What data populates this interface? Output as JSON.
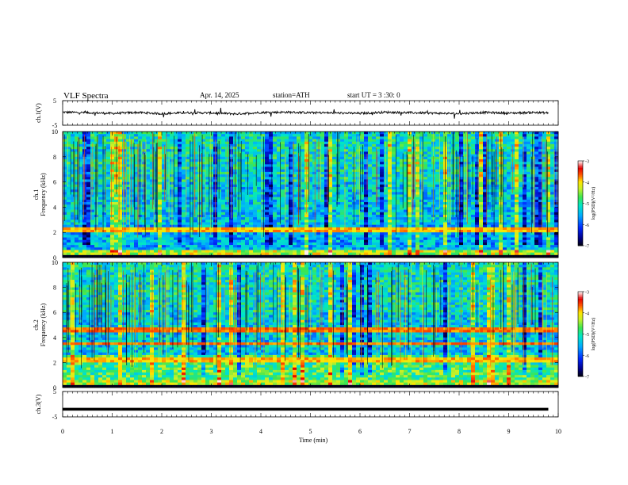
{
  "header": {
    "title": "VLF  Spectra",
    "date": "Apr. 14, 2025",
    "station": "station=ATH",
    "start": "start  UT  =   3  :30: 0"
  },
  "chart_data": [
    {
      "type": "line",
      "name": "ch1-waveform",
      "ylabel": "ch.1(V)",
      "ylim": [
        -5,
        5
      ],
      "yticks": [
        "5",
        "-5"
      ],
      "xlim": [
        0,
        10
      ],
      "x": [
        0,
        0.5,
        1,
        1.5,
        2,
        2.5,
        3,
        3.5,
        4,
        4.5,
        5,
        5.5,
        6,
        6.5,
        7,
        7.5,
        8,
        8.5,
        9,
        9.5,
        9.8
      ],
      "values": [
        0.3,
        0.1,
        -0.2,
        0.2,
        -0.3,
        0.1,
        0.0,
        -0.4,
        0.2,
        0.3,
        0.1,
        0.0,
        -0.2,
        0.3,
        0.1,
        -0.1,
        -0.3,
        0.2,
        -0.1,
        0.2,
        0.0
      ]
    },
    {
      "type": "heatmap",
      "name": "ch1-spectrogram",
      "ylabel": "ch.1\nFrequency (kHz)",
      "ylim": [
        0,
        10
      ],
      "yticks": [
        "0",
        "2",
        "4",
        "6",
        "8",
        "10"
      ],
      "xlim": [
        0,
        10
      ],
      "colorbar": {
        "label": "log(PSD)(V²/Hz)",
        "range": [
          -7,
          -3
        ],
        "ticks": [
          "-3",
          "-4",
          "-5",
          "-6",
          "-7"
        ]
      }
    },
    {
      "type": "heatmap",
      "name": "ch2-spectrogram",
      "ylabel": "ch.2\nFrequency (kHz)",
      "ylim": [
        0,
        10
      ],
      "yticks": [
        "0",
        "2",
        "4",
        "6",
        "8",
        "10"
      ],
      "xlim": [
        0,
        10
      ],
      "colorbar": {
        "label": "log(PSD)(V²/Hz)",
        "range": [
          -7,
          -3
        ],
        "ticks": [
          "-3",
          "-4",
          "-5",
          "-6",
          "-7"
        ]
      }
    },
    {
      "type": "line",
      "name": "ch3-waveform",
      "ylabel": "ch.3(V)",
      "ylim": [
        -5,
        5
      ],
      "yticks": [
        "5",
        "-5"
      ],
      "xlim": [
        0,
        10
      ],
      "x": [
        0,
        9.8
      ],
      "values": [
        -2,
        -2
      ]
    }
  ],
  "xaxis": {
    "label": "Time  (min)",
    "ticks": [
      "0",
      "1",
      "2",
      "3",
      "4",
      "5",
      "6",
      "7",
      "8",
      "9",
      "10"
    ]
  }
}
